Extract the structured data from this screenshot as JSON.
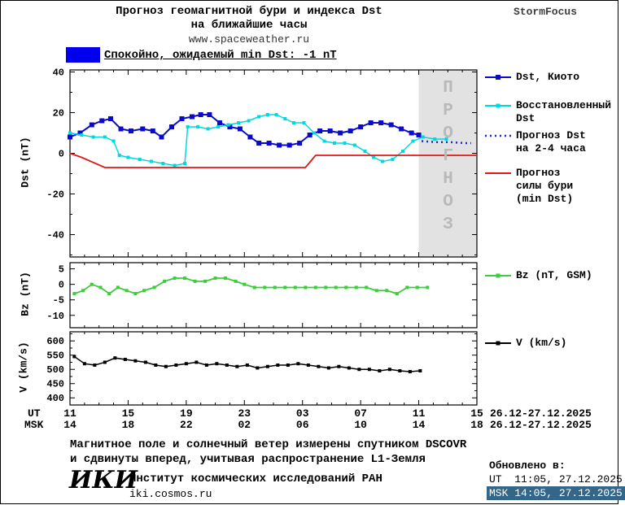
{
  "header": {
    "title_line1": "Прогноз геомагнитной бури и индекса Dst",
    "title_line2": "на ближайшие часы",
    "site": "www.spaceweather.ru",
    "brand": "StormFocus"
  },
  "status_bar": {
    "swatch_color": "#0000ee",
    "text": "Спокойно, ожидаемый min Dst: -1 nT"
  },
  "legend": {
    "dst_kyoto": "Dst, Киото",
    "restored_l1": "Восстановленный",
    "restored_l2": "Dst",
    "forecast_l1": "Прогноз Dst",
    "forecast_l2": "на 2-4 часа",
    "storm_l1": "Прогноз",
    "storm_l2": "силы бури",
    "storm_l3": "(min Dst)",
    "bz": "Bz (nT, GSM)",
    "v": "V (km/s)"
  },
  "xaxis": {
    "ut_label": "UT",
    "msk_label": "MSK",
    "tick_hours": [
      0,
      4,
      8,
      12,
      16,
      20,
      24,
      28
    ],
    "ut_ticks": [
      "11",
      "15",
      "19",
      "23",
      "03",
      "07",
      "11",
      "15"
    ],
    "msk_ticks": [
      "14",
      "18",
      "22",
      "02",
      "06",
      "10",
      "14",
      "18"
    ],
    "ut_date": "26.12-27.12.2025",
    "msk_date": "26.12-27.12.2025"
  },
  "footer": {
    "note_line1": "Магнитное поле и солнечный ветер измерены спутником DSCOVR",
    "note_line2": "и сдвинуты вперед, учитывая распространение L1-Земля",
    "iki_logo": "ИКИ",
    "institute": "Институт космических исследований РАН",
    "site": "iki.cosmos.ru",
    "updated_label": "Обновлено в:",
    "updated_ut": "UT  11:05, 27.12.2025",
    "updated_msk": "MSK 14:05, 27.12.2025",
    "updated_msk_bg": "#336688",
    "updated_msk_fg": "#ffffff"
  },
  "chart_data": [
    {
      "id": "dst",
      "type": "line",
      "title": "Прогноз геомагнитной бури и индекса Dst на ближайшие часы",
      "ylabel": "Dst (nT)",
      "xlim": [
        0,
        28
      ],
      "ylim": [
        -51,
        41
      ],
      "yticks": [
        40,
        20,
        0,
        -20,
        -40
      ],
      "forecast_region": {
        "x0": 24,
        "x1": 28,
        "label": "ПРОГНОЗ"
      },
      "series": [
        {
          "key": "dst_kyoto",
          "name": "Dst, Киото",
          "color": "#0a0ac8",
          "width": 2,
          "marker": true,
          "marker_size": 6,
          "points": [
            [
              0,
              8
            ],
            [
              0.7,
              10
            ],
            [
              1.5,
              14
            ],
            [
              2.2,
              16
            ],
            [
              2.8,
              17
            ],
            [
              3.5,
              12
            ],
            [
              4.2,
              11
            ],
            [
              5,
              12
            ],
            [
              5.7,
              11
            ],
            [
              6.3,
              8
            ],
            [
              7,
              13
            ],
            [
              7.7,
              17
            ],
            [
              8.4,
              18
            ],
            [
              9,
              19
            ],
            [
              9.6,
              19
            ],
            [
              10.3,
              15
            ],
            [
              11,
              13
            ],
            [
              11.7,
              12
            ],
            [
              12.4,
              8
            ],
            [
              13,
              5
            ],
            [
              13.7,
              5
            ],
            [
              14.4,
              4
            ],
            [
              15.1,
              4
            ],
            [
              15.8,
              5
            ],
            [
              16.5,
              9
            ],
            [
              17.2,
              11
            ],
            [
              17.9,
              11
            ],
            [
              18.6,
              10
            ],
            [
              19.3,
              11
            ],
            [
              20,
              13
            ],
            [
              20.7,
              15
            ],
            [
              21.4,
              15
            ],
            [
              22.1,
              14
            ],
            [
              22.8,
              12
            ],
            [
              23.5,
              10
            ],
            [
              24,
              9
            ]
          ]
        },
        {
          "key": "dst_restored",
          "name": "Восстановленный Dst",
          "color": "#00d9e0",
          "width": 1.5,
          "marker": true,
          "marker_size": 4,
          "points": [
            [
              0,
              10
            ],
            [
              0.8,
              9
            ],
            [
              1.6,
              8
            ],
            [
              2.4,
              8
            ],
            [
              3,
              6
            ],
            [
              3.4,
              -1
            ],
            [
              4,
              -2
            ],
            [
              4.8,
              -3
            ],
            [
              5.6,
              -4
            ],
            [
              6.4,
              -5
            ],
            [
              7.2,
              -6
            ],
            [
              7.9,
              -5
            ],
            [
              8.1,
              13
            ],
            [
              8.8,
              13
            ],
            [
              9.5,
              12
            ],
            [
              10.2,
              13
            ],
            [
              10.9,
              14
            ],
            [
              11.6,
              15
            ],
            [
              12.3,
              16
            ],
            [
              13,
              18
            ],
            [
              13.6,
              19
            ],
            [
              14.2,
              19
            ],
            [
              14.8,
              17
            ],
            [
              15.4,
              15
            ],
            [
              16.1,
              15
            ],
            [
              16.8,
              10
            ],
            [
              17.5,
              6
            ],
            [
              18.2,
              5
            ],
            [
              18.9,
              5
            ],
            [
              19.6,
              4
            ],
            [
              20.3,
              1
            ],
            [
              20.9,
              -2
            ],
            [
              21.5,
              -4
            ],
            [
              22.2,
              -3
            ],
            [
              22.9,
              1
            ],
            [
              23.6,
              6
            ],
            [
              24.3,
              8
            ],
            [
              25.1,
              7
            ],
            [
              25.9,
              7
            ]
          ]
        },
        {
          "key": "dst_forecast",
          "name": "Прогноз Dst на 2-4 часа",
          "color": "#2424cc",
          "width": 2.5,
          "dash": "2 4",
          "marker": false,
          "points": [
            [
              24.2,
              6
            ],
            [
              25.2,
              5.5
            ],
            [
              26.2,
              5.5
            ],
            [
              27.2,
              5
            ],
            [
              27.6,
              5
            ]
          ]
        },
        {
          "key": "storm_forecast",
          "name": "Прогноз силы бури (min Dst)",
          "color": "#e01818",
          "width": 1.8,
          "marker": false,
          "points": [
            [
              0,
              0
            ],
            [
              0.8,
              -2
            ],
            [
              2.4,
              -7
            ],
            [
              16.2,
              -7
            ],
            [
              16.9,
              -1
            ],
            [
              28,
              -1
            ]
          ]
        }
      ]
    },
    {
      "id": "bz",
      "type": "line",
      "ylabel": "Bz (nT)",
      "xlim": [
        0,
        28
      ],
      "ylim": [
        -14,
        7
      ],
      "yticks": [
        5,
        0,
        -5,
        -10
      ],
      "series": [
        {
          "key": "bz",
          "name": "Bz (nT, GSM)",
          "color": "#3ccc3c",
          "width": 1.8,
          "marker": true,
          "marker_size": 4,
          "points": [
            [
              0.3,
              -3
            ],
            [
              0.9,
              -2
            ],
            [
              1.5,
              0
            ],
            [
              2.1,
              -1
            ],
            [
              2.7,
              -3
            ],
            [
              3.3,
              -1
            ],
            [
              3.9,
              -2
            ],
            [
              4.5,
              -3
            ],
            [
              5.1,
              -2
            ],
            [
              5.8,
              -1
            ],
            [
              6.5,
              1
            ],
            [
              7.2,
              2
            ],
            [
              7.9,
              2
            ],
            [
              8.6,
              1
            ],
            [
              9.3,
              1
            ],
            [
              10,
              2
            ],
            [
              10.7,
              2
            ],
            [
              11.4,
              1
            ],
            [
              12,
              0
            ],
            [
              12.7,
              -1
            ],
            [
              13.4,
              -1
            ],
            [
              14.1,
              -1
            ],
            [
              14.8,
              -1
            ],
            [
              15.5,
              -1
            ],
            [
              16.2,
              -1
            ],
            [
              16.9,
              -1
            ],
            [
              17.6,
              -1
            ],
            [
              18.3,
              -1
            ],
            [
              19,
              -1
            ],
            [
              19.7,
              -1
            ],
            [
              20.4,
              -1
            ],
            [
              21.1,
              -2
            ],
            [
              21.8,
              -2
            ],
            [
              22.5,
              -3
            ],
            [
              23.2,
              -1
            ],
            [
              23.9,
              -1
            ],
            [
              24.6,
              -1
            ]
          ]
        }
      ]
    },
    {
      "id": "v",
      "type": "line",
      "ylabel": "V (km/s)",
      "xlim": [
        0,
        28
      ],
      "ylim": [
        375,
        632
      ],
      "yticks": [
        600,
        550,
        500,
        450,
        400
      ],
      "series": [
        {
          "key": "v",
          "name": "V (km/s)",
          "color": "#000000",
          "width": 1.5,
          "marker": true,
          "marker_size": 4,
          "points": [
            [
              0.3,
              545
            ],
            [
              1,
              520
            ],
            [
              1.7,
              515
            ],
            [
              2.4,
              525
            ],
            [
              3.1,
              540
            ],
            [
              3.8,
              535
            ],
            [
              4.5,
              530
            ],
            [
              5.2,
              525
            ],
            [
              5.9,
              515
            ],
            [
              6.6,
              510
            ],
            [
              7.3,
              515
            ],
            [
              8,
              520
            ],
            [
              8.7,
              525
            ],
            [
              9.4,
              515
            ],
            [
              10.1,
              520
            ],
            [
              10.8,
              515
            ],
            [
              11.5,
              510
            ],
            [
              12.2,
              515
            ],
            [
              12.9,
              505
            ],
            [
              13.6,
              510
            ],
            [
              14.3,
              515
            ],
            [
              15,
              515
            ],
            [
              15.7,
              520
            ],
            [
              16.4,
              515
            ],
            [
              17.1,
              510
            ],
            [
              17.8,
              505
            ],
            [
              18.5,
              510
            ],
            [
              19.2,
              505
            ],
            [
              19.9,
              500
            ],
            [
              20.6,
              500
            ],
            [
              21.3,
              495
            ],
            [
              22,
              500
            ],
            [
              22.7,
              495
            ],
            [
              23.4,
              492
            ],
            [
              24.1,
              495
            ]
          ]
        }
      ]
    }
  ]
}
